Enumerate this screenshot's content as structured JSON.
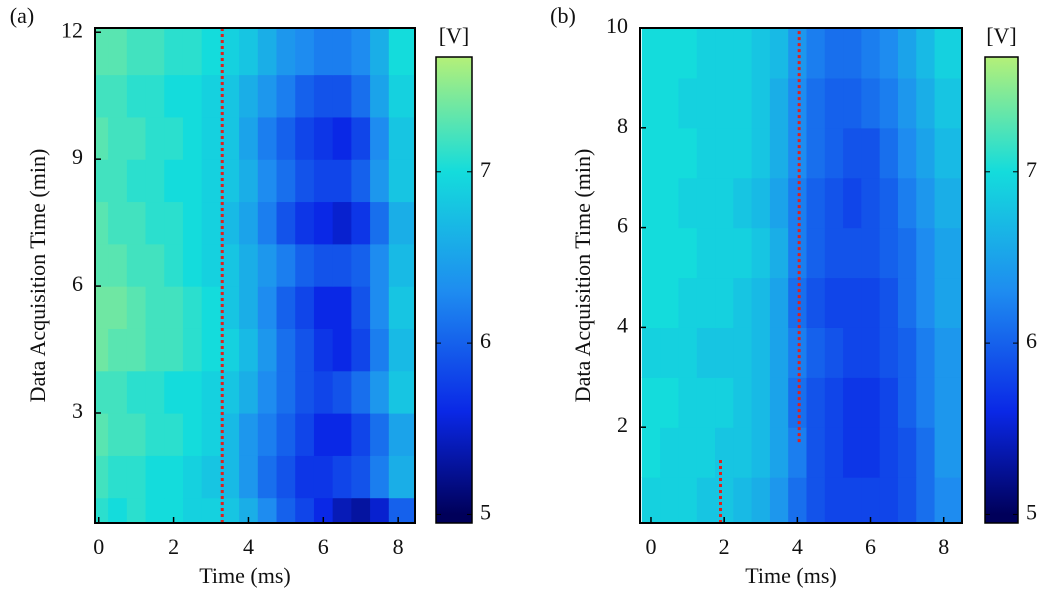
{
  "chart_data": [
    {
      "type": "heatmap",
      "panel_label": "(a)",
      "xlabel": "Time (ms)",
      "ylabel": "Data Acquisition Time (min)",
      "xlim": [
        -0.1,
        8.45
      ],
      "ylim": [
        0.4,
        12.1
      ],
      "xticks": [
        0,
        2,
        4,
        6,
        8
      ],
      "yticks": [
        3,
        6,
        9,
        12
      ],
      "x_edges": [
        -0.25,
        0.25,
        0.75,
        1.25,
        1.75,
        2.25,
        2.75,
        3.25,
        3.75,
        4.25,
        4.75,
        5.25,
        5.75,
        6.25,
        6.75,
        7.25,
        7.75,
        8.75
      ],
      "y_edges": [
        0.4,
        1,
        2,
        3,
        4,
        5,
        6,
        7,
        8,
        9,
        10,
        11,
        12.1
      ],
      "z": [
        [
          7.1,
          7.0,
          7.1,
          7.0,
          7.0,
          6.9,
          6.9,
          6.8,
          6.6,
          6.3,
          6.0,
          5.8,
          5.6,
          5.4,
          5.3,
          5.5,
          6.0
        ],
        [
          7.2,
          7.1,
          7.1,
          7.0,
          7.0,
          6.9,
          6.8,
          6.7,
          6.4,
          6.1,
          5.9,
          5.7,
          5.7,
          5.8,
          5.9,
          6.2,
          6.6
        ],
        [
          7.3,
          7.2,
          7.2,
          7.1,
          7.1,
          7.0,
          6.9,
          6.7,
          6.4,
          6.2,
          6.0,
          5.8,
          5.6,
          5.6,
          5.8,
          6.1,
          6.5
        ],
        [
          7.2,
          7.2,
          7.1,
          7.1,
          7.0,
          7.0,
          6.9,
          6.8,
          6.6,
          6.3,
          6.1,
          5.9,
          5.8,
          5.9,
          6.1,
          6.4,
          6.8
        ],
        [
          7.4,
          7.3,
          7.3,
          7.2,
          7.2,
          7.1,
          7.0,
          6.9,
          6.7,
          6.4,
          6.1,
          5.9,
          5.7,
          5.6,
          5.8,
          6.2,
          6.7
        ],
        [
          7.4,
          7.4,
          7.3,
          7.2,
          7.2,
          7.1,
          7.0,
          6.8,
          6.6,
          6.3,
          6.0,
          5.8,
          5.6,
          5.6,
          5.9,
          6.3,
          6.8
        ],
        [
          7.3,
          7.3,
          7.2,
          7.2,
          7.1,
          7.0,
          6.9,
          6.8,
          6.6,
          6.4,
          6.2,
          6.0,
          5.9,
          5.9,
          6.0,
          6.3,
          6.7
        ],
        [
          7.3,
          7.2,
          7.2,
          7.1,
          7.1,
          7.0,
          6.9,
          6.7,
          6.5,
          6.2,
          5.9,
          5.7,
          5.6,
          5.5,
          5.7,
          6.1,
          6.6
        ],
        [
          7.2,
          7.2,
          7.1,
          7.1,
          7.0,
          7.0,
          6.9,
          6.8,
          6.6,
          6.3,
          6.1,
          5.9,
          5.8,
          5.8,
          6.0,
          6.4,
          6.8
        ],
        [
          7.3,
          7.2,
          7.2,
          7.1,
          7.1,
          7.0,
          6.9,
          6.8,
          6.5,
          6.2,
          6.0,
          5.8,
          5.7,
          5.6,
          5.8,
          6.3,
          6.8
        ],
        [
          7.2,
          7.2,
          7.1,
          7.1,
          7.0,
          7.0,
          6.9,
          6.8,
          6.6,
          6.4,
          6.2,
          6.0,
          5.9,
          5.9,
          6.1,
          6.5,
          6.9
        ],
        [
          7.3,
          7.3,
          7.2,
          7.2,
          7.1,
          7.1,
          7.0,
          6.9,
          6.8,
          6.6,
          6.4,
          6.3,
          6.2,
          6.2,
          6.3,
          6.6,
          7.0
        ]
      ],
      "colorbar": {
        "label": "[V]",
        "lim": [
          4.95,
          7.67
        ],
        "ticks": [
          5,
          6,
          7
        ]
      },
      "colorscale": [
        [
          5,
          "#00005a"
        ],
        [
          5.6,
          "#0a28e6"
        ],
        [
          6.3,
          "#1e8cf0"
        ],
        [
          7,
          "#14dcdc"
        ],
        [
          7.7,
          "#b4f078"
        ]
      ],
      "markers": [
        {
          "x": 3.3,
          "y": [
            0.4,
            12.1
          ],
          "color": "#e0201c"
        }
      ]
    },
    {
      "type": "heatmap",
      "panel_label": "(b)",
      "xlabel": "Time (ms)",
      "ylabel": "Data Acquisition Time (min)",
      "xlim": [
        -0.3,
        8.5
      ],
      "ylim": [
        0.08,
        10
      ],
      "xticks": [
        0,
        2,
        4,
        6,
        8
      ],
      "yticks": [
        2,
        4,
        6,
        8,
        10
      ],
      "x_edges": [
        -0.25,
        0.25,
        0.75,
        1.25,
        1.75,
        2.25,
        2.75,
        3.25,
        3.75,
        4.25,
        4.75,
        5.25,
        5.75,
        6.25,
        6.75,
        7.25,
        7.75,
        8.75
      ],
      "y_edges": [
        0.08,
        1,
        2,
        3,
        4,
        5,
        6,
        7,
        8,
        9,
        10
      ],
      "z": [
        [
          6.9,
          6.9,
          6.9,
          6.8,
          6.8,
          6.7,
          6.6,
          6.4,
          6.1,
          5.9,
          5.8,
          5.8,
          5.8,
          5.8,
          5.9,
          6.1,
          6.3
        ],
        [
          7.0,
          6.9,
          6.9,
          6.9,
          6.8,
          6.8,
          6.7,
          6.5,
          6.2,
          5.9,
          5.8,
          5.7,
          5.7,
          5.8,
          5.9,
          6.1,
          6.4
        ],
        [
          7.0,
          7.0,
          6.9,
          6.9,
          6.9,
          6.8,
          6.7,
          6.5,
          6.1,
          5.9,
          5.8,
          5.7,
          5.7,
          5.8,
          6.0,
          6.2,
          6.4
        ],
        [
          6.9,
          6.9,
          6.9,
          6.8,
          6.8,
          6.8,
          6.7,
          6.5,
          6.2,
          6.0,
          5.9,
          5.8,
          5.8,
          5.9,
          6.0,
          6.2,
          6.4
        ],
        [
          7.0,
          7.0,
          6.9,
          6.9,
          6.9,
          6.8,
          6.7,
          6.5,
          6.1,
          5.9,
          5.8,
          5.8,
          5.8,
          5.9,
          6.1,
          6.3,
          6.5
        ],
        [
          7.0,
          7.0,
          7.0,
          6.9,
          6.9,
          6.9,
          6.8,
          6.6,
          6.2,
          6.0,
          5.9,
          5.9,
          5.9,
          6.0,
          6.1,
          6.3,
          6.5
        ],
        [
          7.0,
          7.0,
          6.9,
          6.9,
          6.9,
          6.8,
          6.7,
          6.5,
          6.2,
          6.0,
          5.9,
          5.8,
          5.9,
          6.0,
          6.2,
          6.4,
          6.6
        ],
        [
          7.0,
          7.0,
          7.0,
          6.9,
          6.9,
          6.9,
          6.8,
          6.6,
          6.3,
          6.1,
          6.0,
          5.9,
          5.9,
          6.1,
          6.3,
          6.5,
          6.7
        ],
        [
          7.0,
          7.0,
          6.9,
          6.9,
          6.9,
          6.9,
          6.8,
          6.6,
          6.3,
          6.1,
          6.0,
          6.0,
          6.1,
          6.2,
          6.4,
          6.6,
          6.8
        ],
        [
          7.0,
          7.0,
          7.0,
          6.9,
          6.9,
          6.9,
          6.8,
          6.7,
          6.4,
          6.2,
          6.1,
          6.1,
          6.2,
          6.3,
          6.5,
          6.7,
          6.9
        ]
      ],
      "colorbar": {
        "label": "[V]",
        "lim": [
          4.95,
          7.67
        ],
        "ticks": [
          5,
          6,
          7
        ]
      },
      "colorscale": [
        [
          5,
          "#00005a"
        ],
        [
          5.6,
          "#0a28e6"
        ],
        [
          6.3,
          "#1e8cf0"
        ],
        [
          7,
          "#14dcdc"
        ],
        [
          7.7,
          "#b4f078"
        ]
      ],
      "markers": [
        {
          "x": 4.05,
          "y": [
            1.7,
            10
          ],
          "color": "#e0201c"
        },
        {
          "x": 1.9,
          "y": [
            0.08,
            1.4
          ],
          "color": "#e0201c"
        }
      ]
    }
  ]
}
